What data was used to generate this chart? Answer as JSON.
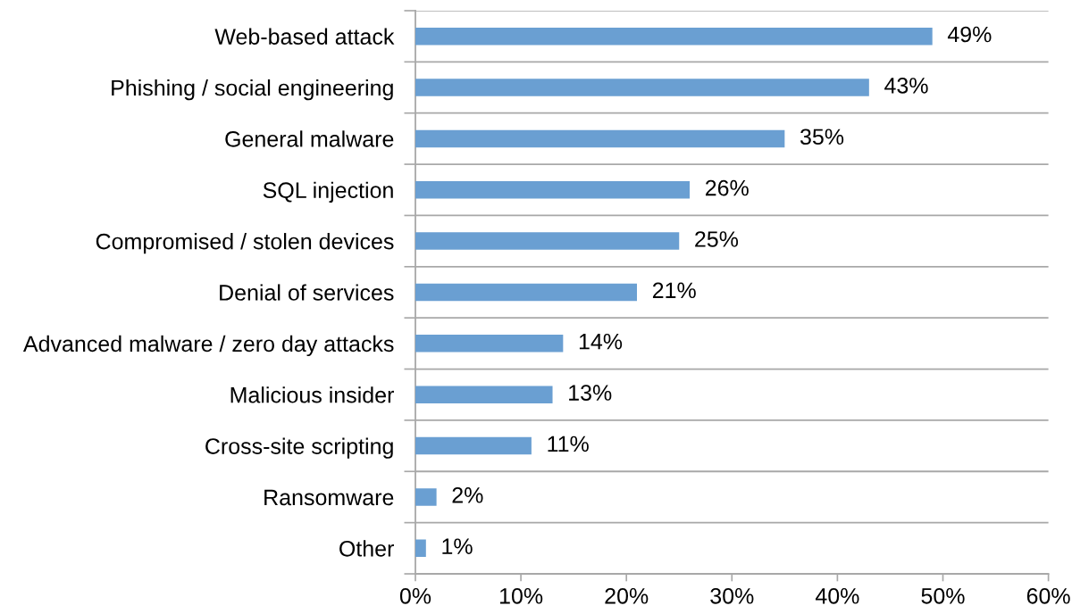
{
  "chart_data": {
    "type": "bar",
    "orientation": "horizontal",
    "categories": [
      "Web-based attack",
      "Phishing / social engineering",
      "General malware",
      "SQL injection",
      "Compromised / stolen devices",
      "Denial of services",
      "Advanced malware / zero day attacks",
      "Malicious insider",
      "Cross-site scripting",
      "Ransomware",
      "Other"
    ],
    "values": [
      49,
      43,
      35,
      26,
      25,
      21,
      14,
      13,
      11,
      2,
      1
    ],
    "value_labels": [
      "49%",
      "43%",
      "35%",
      "26%",
      "25%",
      "21%",
      "14%",
      "13%",
      "11%",
      "2%",
      "1%"
    ],
    "color": "#6a9fd2",
    "xlim": [
      0,
      60
    ],
    "xticks": [
      {
        "value": 0,
        "label": "0%"
      },
      {
        "value": 10,
        "label": "10%"
      },
      {
        "value": 20,
        "label": "20%"
      },
      {
        "value": 30,
        "label": "30%"
      },
      {
        "value": 40,
        "label": "40%"
      },
      {
        "value": 50,
        "label": "50%"
      },
      {
        "value": 60,
        "label": "60%"
      }
    ],
    "grid": "y"
  }
}
